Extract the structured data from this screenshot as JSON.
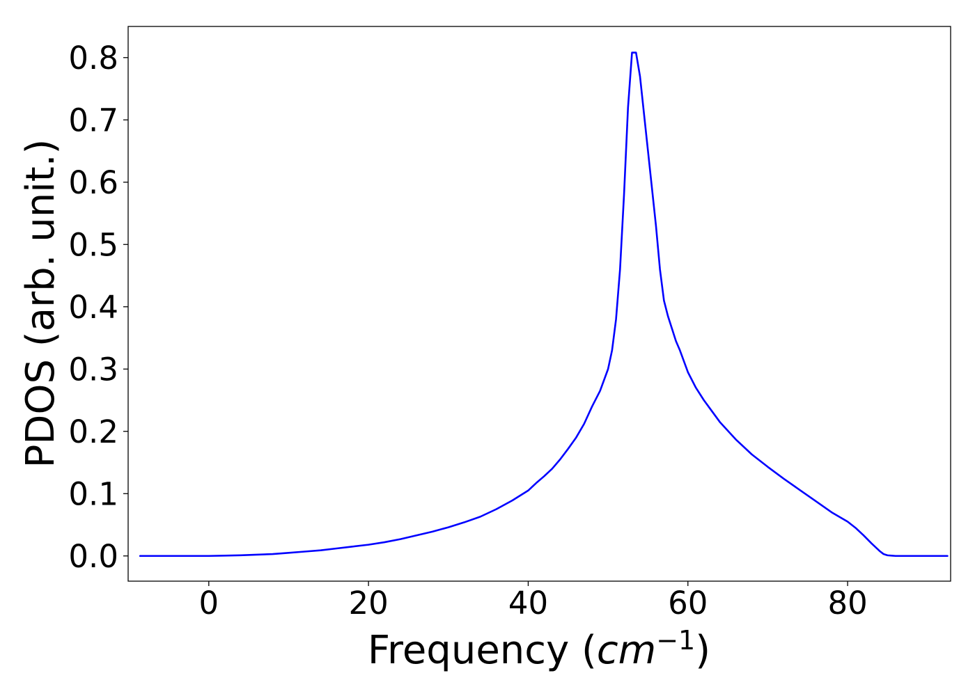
{
  "chart_data": {
    "type": "line",
    "title": "",
    "xlabel": {
      "prefix": "Frequency (",
      "math": "cm",
      "exponent": "−1",
      "suffix": ")"
    },
    "ylabel": "PDOS (arb. unit.)",
    "xlim": [
      -10.1,
      92.9
    ],
    "ylim": [
      -0.0405,
      0.85
    ],
    "xticks": [
      0,
      20,
      40,
      60,
      80
    ],
    "xtick_labels": [
      "0",
      "20",
      "40",
      "60",
      "80"
    ],
    "yticks": [
      0.0,
      0.1,
      0.2,
      0.3,
      0.4,
      0.5,
      0.6,
      0.7,
      0.8
    ],
    "ytick_labels": [
      "0.0",
      "0.1",
      "0.2",
      "0.3",
      "0.4",
      "0.5",
      "0.6",
      "0.7",
      "0.8"
    ],
    "grid": false,
    "legend": false,
    "series": [
      {
        "color": "#0000ff",
        "x": [
          -8.6,
          0,
          2,
          4,
          6,
          8,
          10,
          12,
          14,
          16,
          18,
          20,
          22,
          24,
          26,
          28,
          30,
          32,
          34,
          36,
          38,
          40,
          41,
          42,
          43,
          44,
          45,
          46,
          47,
          48,
          49,
          50,
          50.5,
          51,
          51.5,
          52,
          52.5,
          53,
          53.5,
          54,
          54.5,
          55,
          55.5,
          56,
          56.5,
          57,
          57.5,
          58,
          58.5,
          59,
          60,
          61,
          62,
          64,
          66,
          68,
          70,
          72,
          74,
          76,
          78,
          80,
          81,
          82,
          83,
          84,
          84.5,
          85,
          85.5,
          86,
          92.5
        ],
        "y": [
          0,
          0,
          0.0005,
          0.001,
          0.002,
          0.003,
          0.005,
          0.007,
          0.009,
          0.012,
          0.015,
          0.018,
          0.022,
          0.027,
          0.033,
          0.039,
          0.046,
          0.054,
          0.063,
          0.075,
          0.089,
          0.105,
          0.117,
          0.128,
          0.14,
          0.155,
          0.172,
          0.19,
          0.212,
          0.24,
          0.265,
          0.3,
          0.33,
          0.38,
          0.46,
          0.58,
          0.72,
          0.808,
          0.808,
          0.77,
          0.71,
          0.65,
          0.59,
          0.53,
          0.46,
          0.41,
          0.385,
          0.365,
          0.345,
          0.33,
          0.295,
          0.27,
          0.25,
          0.215,
          0.187,
          0.163,
          0.143,
          0.124,
          0.106,
          0.088,
          0.07,
          0.055,
          0.045,
          0.033,
          0.02,
          0.008,
          0.003,
          0.001,
          0.0005,
          0,
          0
        ]
      }
    ]
  }
}
